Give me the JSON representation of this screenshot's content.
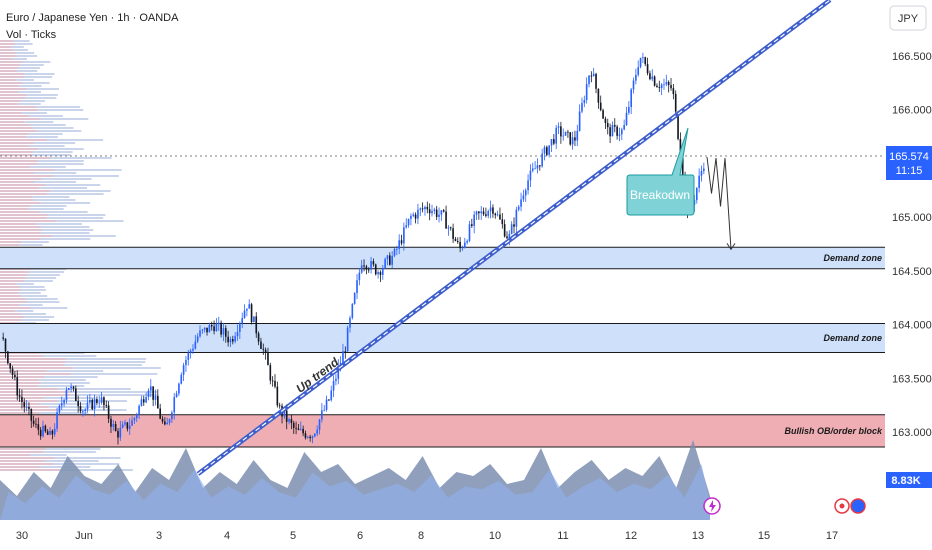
{
  "header": {
    "title": "Euro / Japanese Yen · 1h · OANDA",
    "indicator": "Vol · Ticks",
    "currency_button": "JPY"
  },
  "price_badge": {
    "price": "165.574",
    "countdown": "11:15"
  },
  "volume_badge": "8.83K",
  "colors": {
    "candle_up": "#2962ff",
    "candle_down": "#131722",
    "demand_zone": "#cfe0fb",
    "order_block": "#eeaeb4",
    "trendline": "#3d5ecc",
    "volume_area": "#5a6d8a",
    "callout": "#7fd3d6",
    "badge": "#2962ff"
  },
  "chart_data": {
    "type": "candlestick",
    "symbol": "EURJPY",
    "timeframe": "1h",
    "y_ticks": [
      "166.500",
      "166.000",
      "165.500",
      "165.000",
      "164.500",
      "164.000",
      "163.500",
      "163.000"
    ],
    "x_ticks": [
      "30",
      "Jun",
      "3",
      "4",
      "5",
      "6",
      "8",
      "10",
      "11",
      "12",
      "13",
      "15",
      "17"
    ],
    "ylim": [
      162.7,
      166.9
    ],
    "current_price": 165.574,
    "zones": [
      {
        "label": "Demand zone",
        "low": 164.52,
        "high": 164.72,
        "kind": "demand"
      },
      {
        "label": "Demand zone",
        "low": 163.74,
        "high": 164.01,
        "kind": "demand"
      },
      {
        "label": "Bullish OB/order block",
        "low": 162.86,
        "high": 163.16,
        "kind": "order-block"
      }
    ],
    "trendline": {
      "label": "Up trend",
      "from": {
        "x": "3",
        "y": 162.61
      },
      "to": {
        "x": "13",
        "y": 166.1
      }
    },
    "annotation": {
      "label": "Breakodwn",
      "target": "13"
    },
    "projection": [
      165.56,
      165.22,
      165.55,
      165.1,
      165.55,
      164.7
    ],
    "price_path": [
      [
        "30",
        163.88
      ],
      [
        "30",
        163.35
      ],
      [
        "30",
        163.05
      ],
      [
        "Jun",
        162.95
      ],
      [
        "Jun",
        163.45
      ],
      [
        "Jun",
        163.2
      ],
      [
        "Jun",
        163.32
      ],
      [
        "Jun",
        162.98
      ],
      [
        "3",
        163.1
      ],
      [
        "3",
        163.45
      ],
      [
        "3",
        163.0
      ],
      [
        "3",
        163.6
      ],
      [
        "4",
        163.9
      ],
      [
        "4",
        164.0
      ],
      [
        "4",
        163.85
      ],
      [
        "4",
        164.2
      ],
      [
        "4",
        163.75
      ],
      [
        "4",
        163.2
      ],
      [
        "5",
        163.0
      ],
      [
        "5",
        162.98
      ],
      [
        "5",
        163.3
      ],
      [
        "5",
        163.8
      ],
      [
        "5",
        164.6
      ],
      [
        "6",
        164.5
      ],
      [
        "6",
        164.65
      ],
      [
        "6",
        165.0
      ],
      [
        "6",
        165.1
      ],
      [
        "8",
        165.0
      ],
      [
        "8",
        164.7
      ],
      [
        "8",
        165.0
      ],
      [
        "10",
        165.1
      ],
      [
        "10",
        164.8
      ],
      [
        "10",
        165.3
      ],
      [
        "11",
        165.55
      ],
      [
        "11",
        165.8
      ],
      [
        "11",
        165.7
      ],
      [
        "12",
        166.4
      ],
      [
        "12",
        165.8
      ],
      [
        "12",
        165.8
      ],
      [
        "12",
        166.5
      ],
      [
        "13",
        166.25
      ],
      [
        "13",
        166.2
      ],
      [
        "13",
        165.0
      ],
      [
        "13",
        165.55
      ]
    ],
    "volume_profile": "volume by price on left edge",
    "volume": [
      50,
      30,
      60,
      40,
      80,
      55,
      45,
      70,
      35,
      65,
      50,
      90,
      40,
      60,
      45,
      75,
      50,
      40,
      85,
      60,
      70,
      45,
      55,
      65,
      50,
      80,
      40,
      60,
      55,
      70,
      45,
      50,
      90,
      40,
      60,
      75,
      50,
      65,
      55,
      80,
      40,
      100,
      30
    ]
  }
}
